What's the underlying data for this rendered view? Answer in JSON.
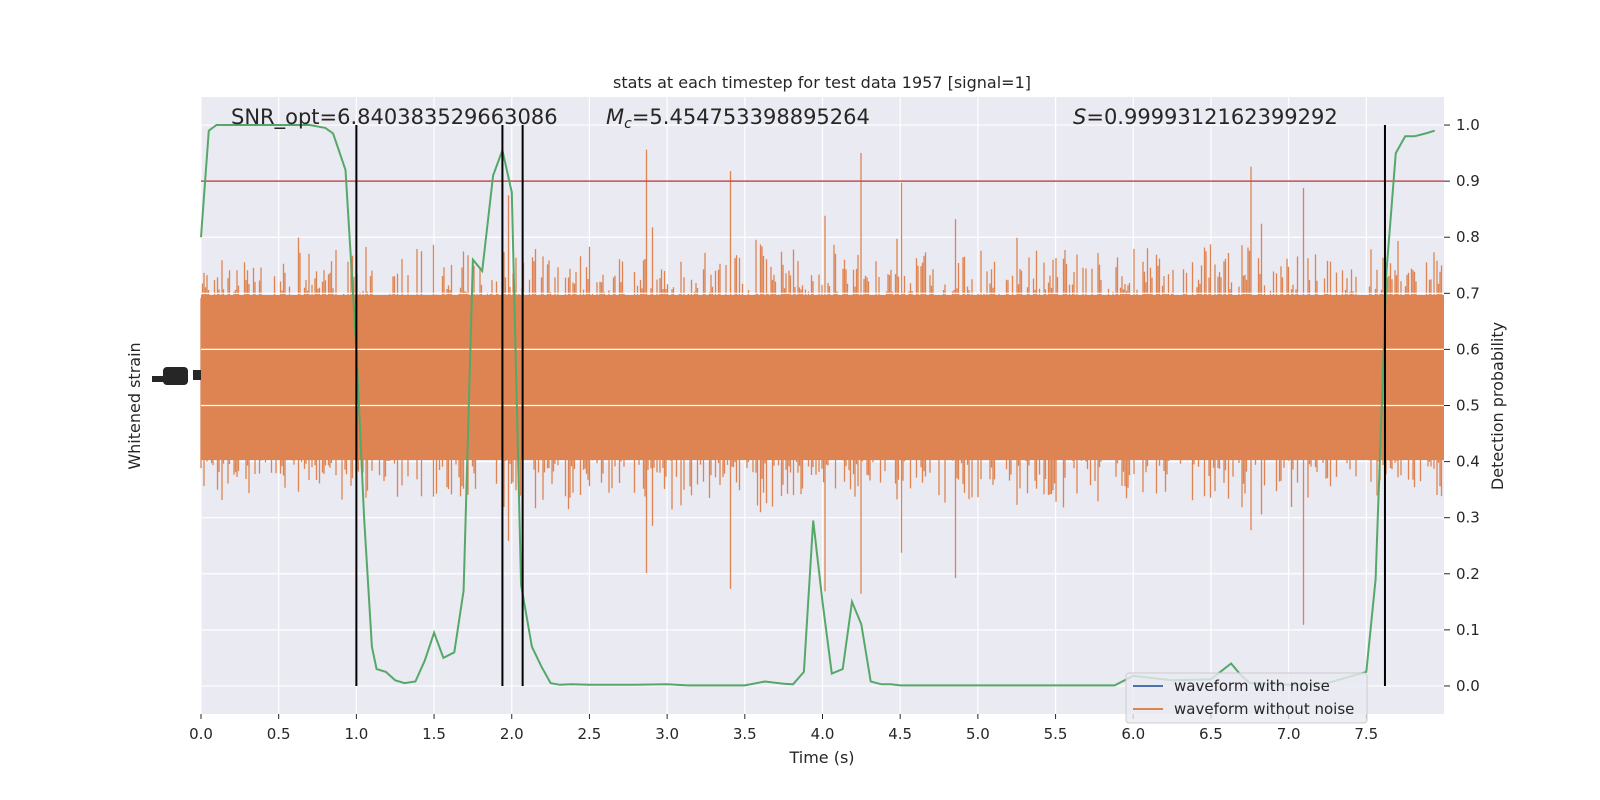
{
  "chart_data": {
    "type": "line",
    "title": "stats at each timestep for test data 1957 [signal=1]",
    "xlabel": "Time (s)",
    "ylabel_left": "Whitened strain",
    "ylabel_right": "Detection probability",
    "xlim": [
      0,
      8
    ],
    "ylim_right": [
      -0.05,
      1.05
    ],
    "x_ticks": [
      "0.0",
      "0.5",
      "1.0",
      "1.5",
      "2.0",
      "2.5",
      "3.0",
      "3.5",
      "4.0",
      "4.5",
      "5.0",
      "5.5",
      "6.0",
      "6.5",
      "7.0",
      "7.5"
    ],
    "x_tick_values": [
      0,
      0.5,
      1,
      1.5,
      2,
      2.5,
      3,
      3.5,
      4,
      4.5,
      5,
      5.5,
      6,
      6.5,
      7,
      7.5
    ],
    "y_right_ticks": [
      "0.0",
      "0.1",
      "0.2",
      "0.3",
      "0.4",
      "0.5",
      "0.6",
      "0.7",
      "0.8",
      "0.9",
      "1.0"
    ],
    "y_right_tick_values": [
      0,
      0.1,
      0.2,
      0.3,
      0.4,
      0.5,
      0.6,
      0.7,
      0.8,
      0.9,
      1.0
    ],
    "grid": true,
    "annotations": {
      "snr": "SNR_opt=6.840383529663086",
      "mc_symbol": "M",
      "mc_sub": "c",
      "mc_value": "=5.454753398895264",
      "s_symbol": "S",
      "s_value": "=0.9999312162399292"
    },
    "threshold": 0.9,
    "vertical_lines": [
      1.0,
      1.94,
      2.07,
      7.62
    ],
    "legend": {
      "position": "lower-right",
      "entries": [
        {
          "name": "waveform with noise",
          "color": "#4c72b0"
        },
        {
          "name": "waveform without noise",
          "color": "#dd8452"
        }
      ]
    },
    "series": [
      {
        "name": "Detection probability",
        "color": "#55a868",
        "x": [
          0.0,
          0.05,
          0.1,
          0.15,
          0.25,
          0.4,
          0.55,
          0.7,
          0.8,
          0.85,
          0.93,
          1.0,
          1.05,
          1.1,
          1.13,
          1.19,
          1.25,
          1.31,
          1.38,
          1.44,
          1.5,
          1.56,
          1.63,
          1.69,
          1.75,
          1.81,
          1.88,
          1.94,
          2.0,
          2.06,
          2.13,
          2.19,
          2.25,
          2.31,
          2.38,
          2.5,
          2.75,
          3.0,
          3.13,
          3.25,
          3.5,
          3.63,
          3.75,
          3.81,
          3.88,
          3.94,
          4.0,
          4.06,
          4.13,
          4.19,
          4.25,
          4.31,
          4.38,
          4.44,
          4.5,
          4.63,
          4.75,
          5.0,
          5.5,
          5.88,
          6.0,
          6.25,
          6.5,
          6.63,
          6.69,
          6.75,
          7.0,
          7.25,
          7.5,
          7.56,
          7.63,
          7.69,
          7.75,
          7.81,
          7.88,
          7.94
        ],
        "y": [
          0.8,
          0.99,
          1.0,
          1.0,
          1.0,
          1.0,
          1.0,
          1.0,
          0.995,
          0.985,
          0.92,
          0.6,
          0.3,
          0.07,
          0.03,
          0.025,
          0.01,
          0.005,
          0.008,
          0.045,
          0.095,
          0.05,
          0.06,
          0.17,
          0.76,
          0.74,
          0.91,
          0.955,
          0.88,
          0.18,
          0.07,
          0.035,
          0.005,
          0.002,
          0.003,
          0.002,
          0.002,
          0.003,
          0.001,
          0.001,
          0.001,
          0.008,
          0.004,
          0.003,
          0.025,
          0.295,
          0.15,
          0.022,
          0.03,
          0.15,
          0.11,
          0.008,
          0.003,
          0.003,
          0.001,
          0.001,
          0.001,
          0.001,
          0.001,
          0.001,
          0.018,
          0.01,
          0.012,
          0.04,
          0.02,
          0.005,
          0.002,
          0.005,
          0.025,
          0.19,
          0.74,
          0.95,
          0.98,
          0.98,
          0.985,
          0.99
        ]
      }
    ]
  }
}
